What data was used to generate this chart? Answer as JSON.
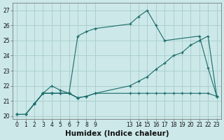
{
  "xlabel": "Humidex (Indice chaleur)",
  "bg_color": "#cce8e8",
  "line_color": "#1a6b6b",
  "grid_color": "#a8cccc",
  "xlim": [
    -0.5,
    23.5
  ],
  "ylim": [
    19.8,
    27.5
  ],
  "xtick_positions": [
    0,
    1,
    2,
    3,
    4,
    5,
    6,
    7,
    8,
    9,
    13,
    14,
    15,
    16,
    17,
    18,
    19,
    20,
    21,
    22,
    23
  ],
  "ytick_positions": [
    20,
    21,
    22,
    23,
    24,
    25,
    26,
    27
  ],
  "series": [
    {
      "x": [
        0,
        1,
        2,
        3,
        4,
        5,
        6,
        7,
        8,
        9,
        13,
        14,
        15,
        16,
        17,
        21,
        22,
        23
      ],
      "y": [
        20.1,
        20.1,
        20.8,
        21.5,
        21.5,
        21.5,
        21.5,
        25.3,
        25.6,
        25.8,
        26.1,
        26.6,
        27.0,
        26.0,
        25.0,
        25.3,
        23.2,
        21.3
      ]
    },
    {
      "x": [
        0,
        1,
        2,
        3,
        4,
        5,
        6,
        7,
        8,
        9,
        13,
        14,
        15,
        16,
        17,
        18,
        19,
        20,
        21,
        22,
        23
      ],
      "y": [
        20.1,
        20.1,
        20.8,
        21.5,
        21.5,
        21.5,
        21.5,
        21.2,
        21.3,
        21.5,
        22.0,
        22.3,
        22.6,
        23.1,
        23.5,
        24.0,
        24.2,
        24.7,
        25.0,
        25.3,
        21.3
      ]
    },
    {
      "comment": "flat line ~21.3-21.5",
      "x": [
        0,
        1,
        2,
        3,
        4,
        5,
        6,
        7,
        8,
        9,
        13,
        14,
        15,
        16,
        17,
        18,
        19,
        20,
        21,
        22,
        23
      ],
      "y": [
        20.1,
        20.1,
        20.8,
        21.5,
        21.5,
        21.5,
        21.5,
        21.2,
        21.3,
        21.5,
        21.5,
        21.5,
        21.5,
        21.5,
        21.5,
        21.5,
        21.5,
        21.5,
        21.5,
        21.5,
        21.3
      ]
    },
    {
      "x": [
        2,
        3,
        4,
        5,
        6,
        7
      ],
      "y": [
        20.8,
        21.5,
        22.0,
        21.7,
        21.5,
        21.2
      ]
    }
  ],
  "tick_fontsize": 5.5,
  "label_fontsize": 7.5
}
